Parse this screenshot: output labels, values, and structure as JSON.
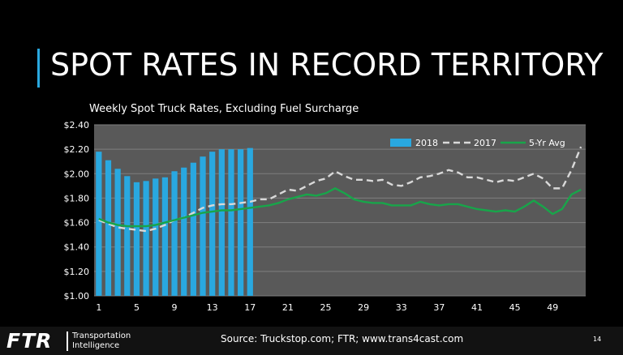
{
  "slide": {
    "title": "SPOT RATES IN RECORD TERRITORY",
    "source": "Source: Truckstop.com; FTR; www.trans4cast.com",
    "page_number": "14",
    "logo": {
      "text": "FTR",
      "line1": "Transportation",
      "line2": "Intelligence"
    }
  },
  "colors": {
    "background": "#000000",
    "plot_area": "#595959",
    "accent": "#2aa9e0",
    "bar_2018": "#29a8e0",
    "line_2017": "#d9d9d9",
    "line_5yr": "#18a54a",
    "gridline": "#7f7f7f",
    "text": "#ffffff"
  },
  "chart_data": {
    "type": "bar",
    "title": "Weekly Spot Truck Rates, Excluding Fuel Surcharge",
    "xlabel": "",
    "ylabel": "",
    "x": [
      1,
      2,
      3,
      4,
      5,
      6,
      7,
      8,
      9,
      10,
      11,
      12,
      13,
      14,
      15,
      16,
      17,
      18,
      19,
      20,
      21,
      22,
      23,
      24,
      25,
      26,
      27,
      28,
      29,
      30,
      31,
      32,
      33,
      34,
      35,
      36,
      37,
      38,
      39,
      40,
      41,
      42,
      43,
      44,
      45,
      46,
      47,
      48,
      49,
      50,
      51,
      52
    ],
    "x_ticks": [
      "1",
      "5",
      "9",
      "13",
      "17",
      "21",
      "25",
      "29",
      "33",
      "37",
      "41",
      "45",
      "49"
    ],
    "x_tick_values": [
      1,
      5,
      9,
      13,
      17,
      21,
      25,
      29,
      33,
      37,
      41,
      45,
      49
    ],
    "ylim": [
      1.0,
      2.4
    ],
    "y_ticks": [
      "$1.00",
      "$1.20",
      "$1.40",
      "$1.60",
      "$1.80",
      "$2.00",
      "$2.20",
      "$2.40"
    ],
    "y_tick_values": [
      1.0,
      1.2,
      1.4,
      1.6,
      1.8,
      2.0,
      2.2,
      2.4
    ],
    "grid": true,
    "legend_position": "top-right",
    "series": [
      {
        "name": "2018",
        "type": "bar",
        "x": [
          1,
          2,
          3,
          4,
          5,
          6,
          7,
          8,
          9,
          10,
          11,
          12,
          13,
          14,
          15,
          16,
          17
        ],
        "values": [
          2.18,
          2.11,
          2.04,
          1.98,
          1.93,
          1.94,
          1.96,
          1.97,
          2.02,
          2.05,
          2.09,
          2.14,
          2.18,
          2.2,
          2.2,
          2.2,
          2.21
        ]
      },
      {
        "name": "2017",
        "type": "line",
        "style": "dashed",
        "values": [
          1.62,
          1.59,
          1.56,
          1.55,
          1.54,
          1.53,
          1.55,
          1.58,
          1.62,
          1.64,
          1.68,
          1.72,
          1.74,
          1.75,
          1.75,
          1.76,
          1.77,
          1.79,
          1.79,
          1.83,
          1.87,
          1.86,
          1.9,
          1.94,
          1.96,
          2.02,
          1.98,
          1.95,
          1.95,
          1.94,
          1.95,
          1.91,
          1.9,
          1.93,
          1.97,
          1.98,
          2.0,
          2.03,
          2.01,
          1.97,
          1.97,
          1.95,
          1.93,
          1.95,
          1.94,
          1.97,
          2.0,
          1.96,
          1.88,
          1.88,
          2.03,
          2.22
        ]
      },
      {
        "name": "5-Yr Avg",
        "type": "line",
        "style": "solid",
        "values": [
          1.63,
          1.6,
          1.58,
          1.57,
          1.57,
          1.57,
          1.58,
          1.6,
          1.62,
          1.64,
          1.66,
          1.68,
          1.69,
          1.7,
          1.7,
          1.71,
          1.72,
          1.73,
          1.74,
          1.76,
          1.79,
          1.81,
          1.83,
          1.82,
          1.84,
          1.88,
          1.84,
          1.79,
          1.77,
          1.76,
          1.76,
          1.74,
          1.74,
          1.74,
          1.77,
          1.75,
          1.74,
          1.75,
          1.75,
          1.73,
          1.71,
          1.7,
          1.69,
          1.7,
          1.69,
          1.73,
          1.78,
          1.73,
          1.67,
          1.71,
          1.83,
          1.87
        ]
      }
    ]
  }
}
